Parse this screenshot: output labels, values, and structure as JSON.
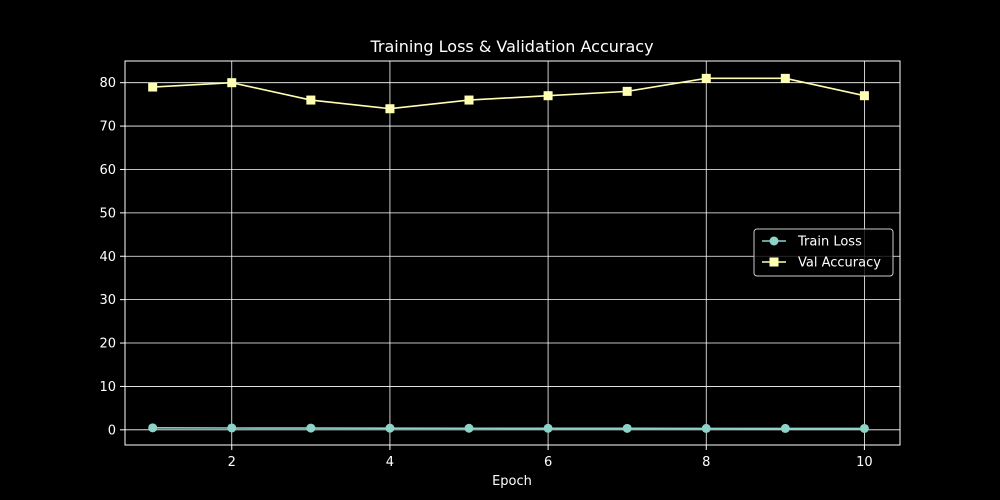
{
  "chart_data": {
    "type": "line",
    "title": "Training Loss & Validation Accuracy",
    "xlabel": "Epoch",
    "ylabel": "",
    "x": [
      1,
      2,
      3,
      4,
      5,
      6,
      7,
      8,
      9,
      10
    ],
    "xlim": [
      0.65,
      10.45
    ],
    "ylim": [
      -3.5,
      85
    ],
    "x_ticks": [
      2,
      4,
      6,
      8,
      10
    ],
    "y_ticks": [
      0,
      10,
      20,
      30,
      40,
      50,
      60,
      70,
      80
    ],
    "grid": true,
    "legend_position": "center-right",
    "background": "#000000",
    "series": [
      {
        "name": "Train Loss",
        "marker": "circle",
        "color": "#8dd3c7",
        "values": [
          0.45,
          0.42,
          0.4,
          0.38,
          0.36,
          0.35,
          0.34,
          0.33,
          0.32,
          0.31
        ]
      },
      {
        "name": "Val Accuracy",
        "marker": "square",
        "color": "#ffffb3",
        "values": [
          79,
          80,
          76,
          74,
          76,
          77,
          78,
          81,
          81,
          77
        ]
      }
    ]
  }
}
